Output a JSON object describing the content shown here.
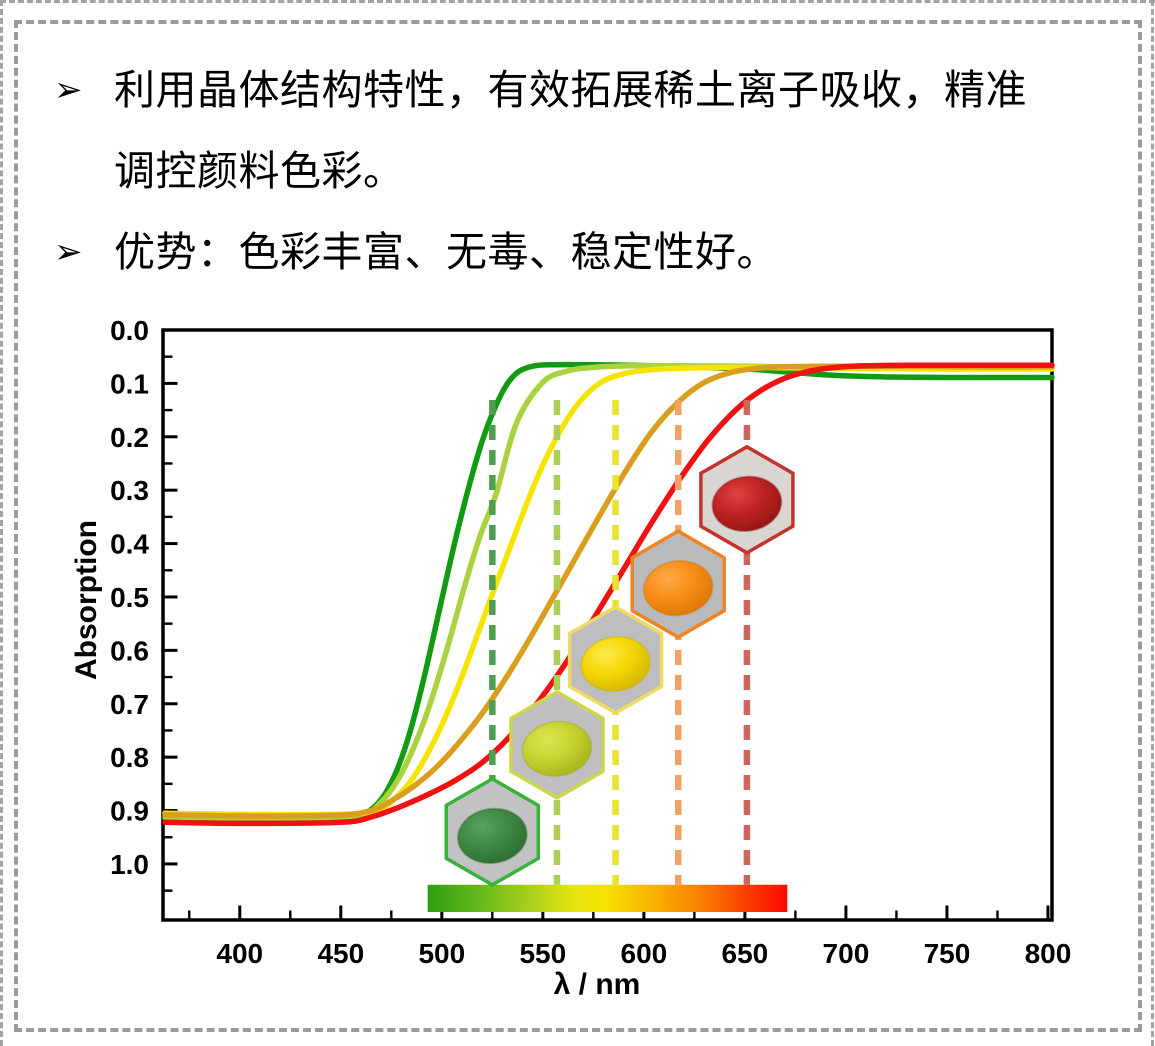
{
  "page": {
    "background": "#ffffff",
    "frame_color": "#9b9b9b"
  },
  "bullets": [
    {
      "marker": "➢",
      "lines": [
        "利用晶体结构特性，有效拓展稀土离子吸收，精准",
        "调控颜料色彩。"
      ]
    },
    {
      "marker": "➢",
      "lines": [
        "优势：色彩丰富、无毒、稳定性好。"
      ]
    }
  ],
  "chart_data": {
    "type": "line",
    "title": "",
    "xlabel": "λ / nm",
    "ylabel": "Absorption",
    "x_range": [
      362,
      802
    ],
    "y_range": [
      0,
      1.105
    ],
    "y_axis_direction": "inverted (0.0 at top, 1.0 at bottom)",
    "grid": "off",
    "legend": "none",
    "x_major_ticks": [
      400,
      450,
      500,
      550,
      600,
      650,
      700,
      750,
      800
    ],
    "x_minor_step": 25,
    "y_major_ticks": [
      {
        "value": 0.0,
        "label": "0.0"
      },
      {
        "value": 0.1,
        "label": "0.1"
      },
      {
        "value": 0.2,
        "label": "0.2"
      },
      {
        "value": 0.3,
        "label": "0.3"
      },
      {
        "value": 0.4,
        "label": "0.4"
      },
      {
        "value": 0.5,
        "label": "0.5"
      },
      {
        "value": 0.6,
        "label": "0.6"
      },
      {
        "value": 0.7,
        "label": "0.7"
      },
      {
        "value": 0.8,
        "label": "0.8"
      },
      {
        "value": 0.9,
        "label": "0.9"
      },
      {
        "value": 1.0,
        "label": "1.0"
      }
    ],
    "y_minor_step": 0.05,
    "series": [
      {
        "name": "green",
        "color": "#129a12",
        "x": [
          363,
          400,
          440,
          458,
          466,
          472,
          478,
          484,
          490,
          496,
          502,
          508,
          514,
          520,
          526,
          532,
          538,
          546,
          556,
          572,
          592,
          612,
          635,
          655,
          675,
          695,
          720,
          750,
          802
        ],
        "y": [
          0.915,
          0.917,
          0.917,
          0.911,
          0.895,
          0.868,
          0.822,
          0.756,
          0.67,
          0.572,
          0.47,
          0.373,
          0.285,
          0.208,
          0.148,
          0.103,
          0.078,
          0.067,
          0.065,
          0.065,
          0.066,
          0.068,
          0.071,
          0.074,
          0.08,
          0.085,
          0.088,
          0.089,
          0.089
        ]
      },
      {
        "name": "yellow-green",
        "color": "#a8d23e",
        "x": [
          363,
          400,
          445,
          462,
          470,
          477,
          484,
          491,
          498,
          505,
          512,
          519,
          527,
          537,
          550,
          562,
          575,
          595,
          620,
          650,
          690,
          740,
          802
        ],
        "y": [
          0.912,
          0.914,
          0.914,
          0.906,
          0.884,
          0.85,
          0.8,
          0.735,
          0.655,
          0.565,
          0.47,
          0.385,
          0.305,
          0.174,
          0.098,
          0.077,
          0.07,
          0.067,
          0.067,
          0.068,
          0.07,
          0.071,
          0.071
        ]
      },
      {
        "name": "yellow",
        "color": "#f6e400",
        "x": [
          363,
          400,
          450,
          468,
          476,
          484,
          492,
          500,
          508,
          516,
          524,
          532,
          540,
          548,
          557,
          567,
          578,
          590,
          605,
          625,
          655,
          695,
          745,
          802
        ],
        "y": [
          0.905,
          0.907,
          0.907,
          0.9,
          0.88,
          0.848,
          0.8,
          0.74,
          0.668,
          0.588,
          0.505,
          0.425,
          0.345,
          0.27,
          0.2,
          0.14,
          0.1,
          0.082,
          0.074,
          0.071,
          0.07,
          0.072,
          0.073,
          0.073
        ]
      },
      {
        "name": "orange",
        "color": "#d99e1e",
        "x": [
          363,
          400,
          448,
          465,
          475,
          486,
          497,
          508,
          520,
          532,
          544,
          556,
          568,
          580,
          592,
          604,
          617,
          630,
          645,
          662,
          685,
          715,
          755,
          802
        ],
        "y": [
          0.908,
          0.91,
          0.909,
          0.9,
          0.882,
          0.855,
          0.82,
          0.775,
          0.718,
          0.65,
          0.575,
          0.495,
          0.415,
          0.335,
          0.258,
          0.19,
          0.135,
          0.098,
          0.078,
          0.07,
          0.068,
          0.068,
          0.069,
          0.069
        ]
      },
      {
        "name": "red",
        "color": "#f01111",
        "x": [
          363,
          400,
          450,
          465,
          478,
          492,
          506,
          520,
          534,
          548,
          562,
          576,
          590,
          604,
          618,
          632,
          646,
          658,
          670,
          682,
          695,
          710,
          730,
          760,
          802
        ],
        "y": [
          0.922,
          0.924,
          0.922,
          0.912,
          0.895,
          0.872,
          0.845,
          0.81,
          0.76,
          0.695,
          0.62,
          0.535,
          0.448,
          0.36,
          0.278,
          0.205,
          0.148,
          0.113,
          0.09,
          0.077,
          0.07,
          0.067,
          0.066,
          0.066,
          0.066
        ]
      }
    ],
    "absorption_edges": [
      {
        "name": "green",
        "wavelength": 525,
        "color": "#4f9e4f"
      },
      {
        "name": "yellow-green",
        "wavelength": 557,
        "color": "#aacf58"
      },
      {
        "name": "yellow",
        "wavelength": 586,
        "color": "#e9e22e"
      },
      {
        "name": "orange",
        "wavelength": 617,
        "color": "#f2a263"
      },
      {
        "name": "red",
        "wavelength": 651,
        "color": "#cd665c"
      }
    ],
    "edge_line_span_absorption": [
      0.131,
      1.039
    ],
    "powder_samples": [
      {
        "name": "green",
        "wavelength": 525,
        "center_absorption": 0.94,
        "border_color": "#38b238",
        "bg": "#c2c2c4",
        "powder": "#3f8a44",
        "powder_light": "#58a25c",
        "powder_dark": "#2c6930"
      },
      {
        "name": "yellow-green",
        "wavelength": 557,
        "center_absorption": 0.777,
        "border_color": "#cdd648",
        "bg": "#bfbfc1",
        "powder": "#c9d431",
        "powder_light": "#dde453",
        "powder_dark": "#a2ae1c"
      },
      {
        "name": "yellow",
        "wavelength": 586,
        "center_absorption": 0.618,
        "border_color": "#f0da60",
        "bg": "#bebec0",
        "powder": "#f4d804",
        "powder_light": "#ffe94d",
        "powder_dark": "#cdb200"
      },
      {
        "name": "orange",
        "wavelength": 617,
        "center_absorption": 0.476,
        "border_color": "#ef8424",
        "bg": "#b9babc",
        "powder": "#f88e18",
        "powder_light": "#ffaa47",
        "powder_dark": "#d87404"
      },
      {
        "name": "red",
        "wavelength": 651,
        "center_absorption": 0.318,
        "border_color": "#c5342c",
        "bg": "#d8d5d2",
        "powder": "#c12222",
        "powder_light": "#de4440",
        "powder_dark": "#8c1414"
      }
    ],
    "colorbar": {
      "wavelength_from": 493,
      "wavelength_to": 671,
      "absorption_from": 1.039,
      "absorption_to": 1.09,
      "stops": [
        [
          0,
          "#2f9d14"
        ],
        [
          0.14,
          "#63b81a"
        ],
        [
          0.28,
          "#a8cf1d"
        ],
        [
          0.4,
          "#e2e40e"
        ],
        [
          0.5,
          "#f6e100"
        ],
        [
          0.62,
          "#f8b400"
        ],
        [
          0.74,
          "#f98800"
        ],
        [
          0.86,
          "#fa4c00"
        ],
        [
          1,
          "#fb0800"
        ]
      ]
    }
  }
}
